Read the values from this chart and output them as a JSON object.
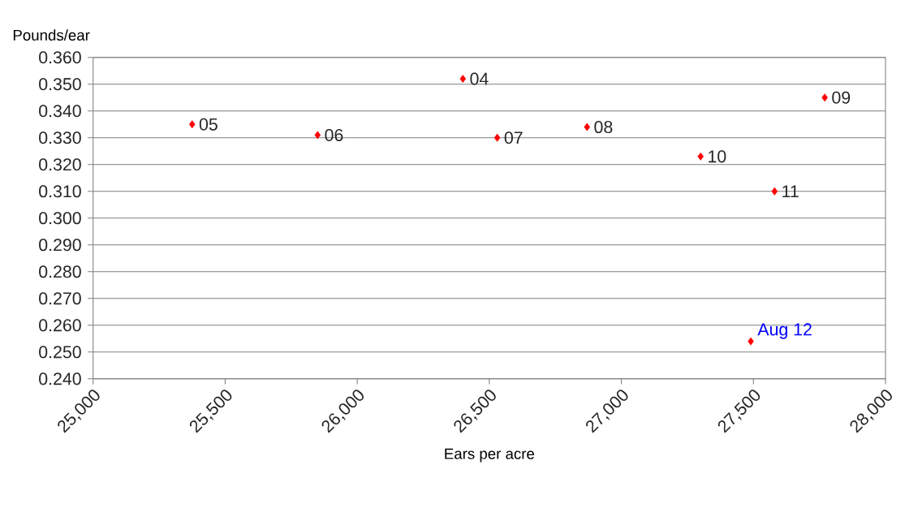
{
  "chart_data": {
    "type": "scatter",
    "xlabel": "Ears per acre",
    "ylabel": "Pounds/ear",
    "xlim": [
      25000,
      28000
    ],
    "xticks": [
      {
        "value": 25000,
        "label": "25,000"
      },
      {
        "value": 25500,
        "label": "25,500"
      },
      {
        "value": 26000,
        "label": "26,000"
      },
      {
        "value": 26500,
        "label": "26,500"
      },
      {
        "value": 27000,
        "label": "27,000"
      },
      {
        "value": 27500,
        "label": "27,500"
      },
      {
        "value": 28000,
        "label": "28,000"
      }
    ],
    "ylim": [
      0.24,
      0.36
    ],
    "yticks": [
      {
        "value": 0.24,
        "label": "0.240"
      },
      {
        "value": 0.25,
        "label": "0.250"
      },
      {
        "value": 0.26,
        "label": "0.260"
      },
      {
        "value": 0.27,
        "label": "0.270"
      },
      {
        "value": 0.28,
        "label": "0.280"
      },
      {
        "value": 0.29,
        "label": "0.290"
      },
      {
        "value": 0.3,
        "label": "0.300"
      },
      {
        "value": 0.31,
        "label": "0.310"
      },
      {
        "value": 0.32,
        "label": "0.320"
      },
      {
        "value": 0.33,
        "label": "0.330"
      },
      {
        "value": 0.34,
        "label": "0.340"
      },
      {
        "value": 0.35,
        "label": "0.350"
      },
      {
        "value": 0.36,
        "label": "0.360"
      }
    ],
    "grid": "y",
    "marker": "diamond",
    "series": [
      {
        "color": "#ff0000",
        "x": [
          25375,
          25850,
          26400,
          26530,
          26870,
          27770,
          27300,
          27580
        ],
        "values": [
          0.335,
          0.331,
          0.352,
          0.33,
          0.334,
          0.345,
          0.323,
          0.31
        ]
      },
      {
        "color": "#ff0000",
        "x": [
          27490
        ],
        "values": [
          0.254
        ]
      }
    ],
    "annotations": [
      {
        "text": "05",
        "x": 25375,
        "y": 0.335
      },
      {
        "text": "06",
        "x": 25850,
        "y": 0.331
      },
      {
        "text": "04",
        "x": 26400,
        "y": 0.352
      },
      {
        "text": "07",
        "x": 26530,
        "y": 0.33
      },
      {
        "text": "08",
        "x": 26870,
        "y": 0.334
      },
      {
        "text": "09",
        "x": 27770,
        "y": 0.345
      },
      {
        "text": "10",
        "x": 27300,
        "y": 0.323
      },
      {
        "text": "11",
        "x": 27580,
        "y": 0.31
      },
      {
        "text": "Aug 12",
        "x": 27490,
        "y": 0.254
      }
    ]
  }
}
